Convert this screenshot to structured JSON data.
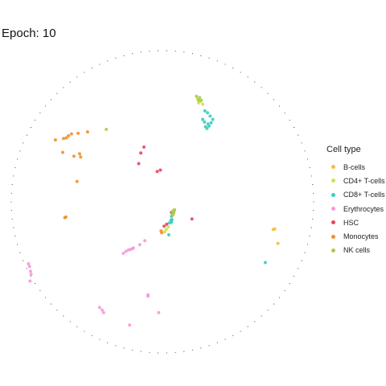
{
  "chart_data": {
    "type": "scatter",
    "title": "Epoch: 10",
    "legend": {
      "title": "Cell type",
      "placement": "right",
      "entries": [
        {
          "name": "B-cells",
          "color": "#F5BE3A"
        },
        {
          "name": "CD4+ T-cells",
          "color": "#D4E04A"
        },
        {
          "name": "CD8+ T-cells",
          "color": "#3CCBC0"
        },
        {
          "name": "Erythrocytes",
          "color": "#F59AD6"
        },
        {
          "name": "HSC",
          "color": "#E8455E"
        },
        {
          "name": "Monocytes",
          "color": "#F0902C"
        },
        {
          "name": "NK cells",
          "color": "#A8CC4C"
        }
      ]
    },
    "series": [
      {
        "name": "B-cells",
        "points": [
          [
            0.737,
            -0.184
          ],
          [
            0.768,
            -0.276
          ],
          [
            0.747,
            -0.18
          ]
        ]
      },
      {
        "name": "CD4+ T-cells",
        "points": [
          [
            0.233,
            0.685
          ],
          [
            0.251,
            0.667
          ],
          [
            0.268,
            0.649
          ],
          [
            0.24,
            0.658
          ],
          [
            0.025,
            -0.184
          ],
          [
            0.039,
            -0.167
          ],
          [
            0.015,
            -0.2
          ]
        ]
      },
      {
        "name": "CD8+ T-cells",
        "points": [
          [
            0.282,
            0.605
          ],
          [
            0.3,
            0.592
          ],
          [
            0.317,
            0.57
          ],
          [
            0.335,
            0.548
          ],
          [
            0.324,
            0.526
          ],
          [
            0.31,
            0.504
          ],
          [
            0.296,
            0.487
          ],
          [
            0.279,
            0.531
          ],
          [
            0.268,
            0.548
          ],
          [
            0.286,
            0.5
          ],
          [
            0.303,
            0.518
          ],
          [
            0.06,
            -0.096
          ],
          [
            0.063,
            -0.118
          ],
          [
            0.06,
            -0.136
          ],
          [
            0.056,
            -0.123
          ],
          [
            0.046,
            -0.14
          ],
          [
            0.042,
            -0.219
          ],
          [
            0.684,
            -0.404
          ]
        ]
      },
      {
        "name": "Erythrocytes",
        "points": [
          [
            -0.26,
            -0.342
          ],
          [
            -0.242,
            -0.329
          ],
          [
            -0.225,
            -0.32
          ],
          [
            -0.211,
            -0.316
          ],
          [
            -0.2,
            -0.311
          ],
          [
            -0.193,
            -0.307
          ],
          [
            -0.151,
            -0.285
          ],
          [
            -0.117,
            -0.259
          ],
          [
            -0.891,
            -0.412
          ],
          [
            -0.884,
            -0.43
          ],
          [
            -0.877,
            -0.461
          ],
          [
            -0.874,
            -0.482
          ],
          [
            -0.881,
            -0.526
          ],
          [
            -0.096,
            -0.618
          ],
          [
            -0.096,
            -0.627
          ],
          [
            -0.418,
            -0.702
          ],
          [
            -0.401,
            -0.719
          ],
          [
            -0.391,
            -0.737
          ],
          [
            -0.025,
            -0.737
          ],
          [
            -0.218,
            -0.82
          ]
        ]
      },
      {
        "name": "HSC",
        "points": [
          [
            -0.123,
            0.364
          ],
          [
            -0.144,
            0.325
          ],
          [
            -0.158,
            0.254
          ],
          [
            -0.035,
            0.202
          ],
          [
            -0.014,
            0.211
          ],
          [
            0.06,
            -0.07
          ],
          [
            0.028,
            -0.149
          ],
          [
            0.011,
            -0.162
          ],
          [
            0.196,
            -0.114
          ]
        ]
      },
      {
        "name": "Monocytes",
        "points": [
          [
            -0.712,
            0.412
          ],
          [
            -0.658,
            0.421
          ],
          [
            -0.639,
            0.425
          ],
          [
            -0.625,
            0.439
          ],
          [
            -0.605,
            0.452
          ],
          [
            -0.561,
            0.456
          ],
          [
            -0.498,
            0.465
          ],
          [
            -0.663,
            0.329
          ],
          [
            -0.589,
            0.303
          ],
          [
            -0.551,
            0.32
          ],
          [
            -0.544,
            0.298
          ],
          [
            -0.568,
            0.136
          ],
          [
            -0.649,
            -0.105
          ],
          [
            -0.642,
            -0.101
          ],
          [
            -0.009,
            -0.193
          ],
          [
            -0.005,
            -0.206
          ]
        ]
      },
      {
        "name": "NK cells",
        "points": [
          [
            -0.373,
            0.482
          ],
          [
            0.226,
            0.702
          ],
          [
            0.24,
            0.675
          ],
          [
            0.247,
            0.693
          ],
          [
            0.258,
            0.675
          ],
          [
            0.068,
            -0.088
          ],
          [
            0.074,
            -0.079
          ],
          [
            0.077,
            -0.066
          ],
          [
            0.081,
            -0.053
          ],
          [
            0.074,
            -0.057
          ],
          [
            0.067,
            -0.066
          ]
        ]
      }
    ],
    "xlim": [
      -1.1,
      1.1
    ],
    "ylim": [
      -1.1,
      1.1
    ],
    "grid": false,
    "axes_visible": false,
    "boundary": "unit circle (dotted)"
  }
}
